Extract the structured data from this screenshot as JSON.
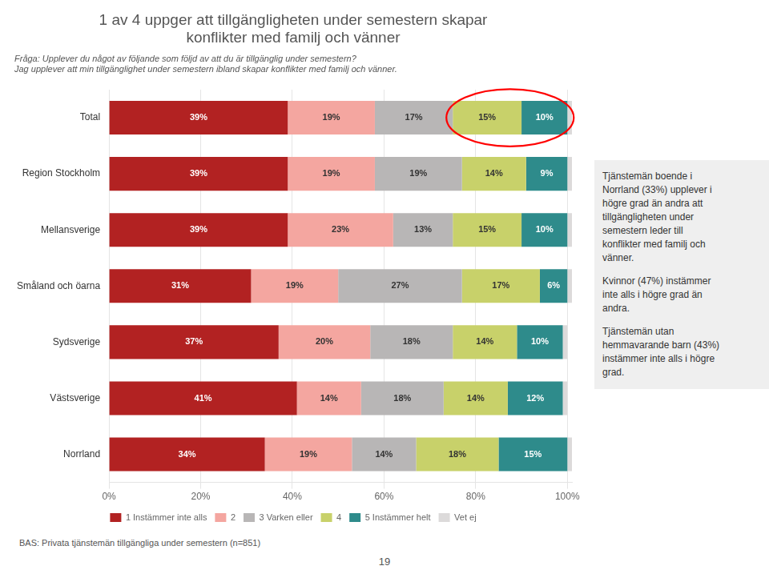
{
  "chart_data": {
    "type": "bar",
    "orientation": "horizontal",
    "stacked": true,
    "title": [
      "1 av 4 uppger att tillgängligheten under semestern skapar",
      "konflikter med familj och vänner"
    ],
    "subtitle": [
      "Fråga: Upplever du något av följande som följd av att du är tillgänglig under semestern?",
      "Jag upplever att min tillgänglighet under semestern ibland skapar konflikter med familj och vänner."
    ],
    "categories": [
      "Total",
      "Region Stockholm",
      "Mellansverige",
      "Småland och öarna",
      "Sydsverige",
      "Västsverige",
      "Norrland"
    ],
    "series": [
      {
        "name": "1 Instämmer inte alls",
        "color": "#b22222",
        "values": [
          39,
          39,
          39,
          31,
          37,
          41,
          34
        ],
        "value_labels": [
          "39%",
          "39%",
          "39%",
          "31%",
          "37%",
          "41%",
          "34%"
        ]
      },
      {
        "name": "2",
        "color": "#f4a6a0",
        "values": [
          19,
          19,
          23,
          19,
          20,
          14,
          19
        ],
        "value_labels": [
          "19%",
          "19%",
          "23%",
          "19%",
          "20%",
          "14%",
          "19%"
        ]
      },
      {
        "name": "3 Varken eller",
        "color": "#b8b6b6",
        "values": [
          17,
          19,
          13,
          27,
          18,
          18,
          14
        ],
        "value_labels": [
          "17%",
          "19%",
          "13%",
          "27%",
          "18%",
          "18%",
          "14%"
        ]
      },
      {
        "name": "4",
        "color": "#c8d16a",
        "values": [
          15,
          14,
          15,
          17,
          14,
          14,
          18
        ],
        "value_labels": [
          "15%",
          "14%",
          "15%",
          "17%",
          "14%",
          "14%",
          "18%"
        ]
      },
      {
        "name": "5 Instämmer helt",
        "color": "#2e8b8b",
        "values": [
          10,
          9,
          10,
          6,
          10,
          12,
          15
        ],
        "value_labels": [
          "10%",
          "9%",
          "10%",
          "6%",
          "10%",
          "12%",
          "15%"
        ]
      },
      {
        "name": "Vet ej",
        "color": "#dcdada",
        "values": [
          1,
          1,
          1,
          1,
          1,
          1,
          1
        ],
        "value_labels": [
          null,
          null,
          null,
          null,
          null,
          null,
          null
        ]
      }
    ],
    "xlim": [
      0,
      101
    ],
    "xticks": [
      {
        "value": 0,
        "label": "0%"
      },
      {
        "value": 20,
        "label": "20%"
      },
      {
        "value": 40,
        "label": "40%"
      },
      {
        "value": 60,
        "label": "60%"
      },
      {
        "value": 80,
        "label": "80%"
      },
      {
        "value": 100,
        "label": "100%"
      }
    ],
    "grid": true,
    "legend": "bottom",
    "data_labels": true,
    "annotations": {
      "note": [
        [
          "Tjänstemän boende i",
          "Norrland (33%) upplever i",
          "högre grad än andra att",
          "tillgängligheten under",
          "semestern leder till",
          "konflikter med familj och",
          "vänner."
        ],
        [
          "Kvinnor (47%) instämmer",
          "inte alls i högre grad än",
          "andra."
        ],
        [
          "Tjänstemän utan",
          "hemmavarande barn (43%)",
          "instämmer inte alls i högre",
          "grad."
        ]
      ],
      "footnote": "BAS: Privata tjänstemän tillgängliga under semestern (n=851)",
      "page_number": "19"
    }
  }
}
